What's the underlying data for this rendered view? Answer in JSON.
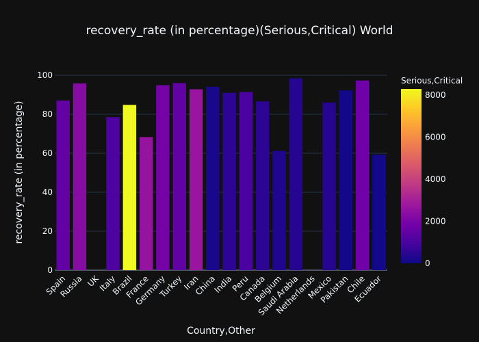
{
  "chart_data": {
    "type": "bar",
    "title": "recovery_rate (in percentage)(Serious,Critical) World",
    "xlabel": "Country,Other",
    "ylabel": "recovery_rate (in percentage)",
    "ylim": [
      0,
      100
    ],
    "yticks": [
      0,
      20,
      40,
      60,
      80,
      100
    ],
    "grid": true,
    "categories": [
      "Spain",
      "Russia",
      "UK",
      "Italy",
      "Brazil",
      "France",
      "Germany",
      "Turkey",
      "Iran",
      "China",
      "India",
      "Peru",
      "Canada",
      "Belgium",
      "Saudi Arabia",
      "Netherlands",
      "Mexico",
      "Pakistan",
      "Chile",
      "Ecuador"
    ],
    "values": [
      87,
      95.8,
      0,
      78.5,
      84.8,
      68.3,
      94.9,
      96,
      92.8,
      94.1,
      91,
      91.4,
      86.6,
      61.2,
      98.4,
      0,
      86,
      92.2,
      97.3,
      59.3
    ],
    "color_values": [
      1500,
      2300,
      0,
      1100,
      8300,
      2600,
      1900,
      1500,
      2700,
      200,
      500,
      1000,
      500,
      300,
      400,
      0,
      400,
      100,
      1800,
      100
    ],
    "colorbar": {
      "title": "Serious,Critical",
      "min": 0,
      "max": 8300,
      "ticks": [
        0,
        2000,
        4000,
        6000,
        8000
      ],
      "colorscale": [
        "#0d0887",
        "#46039f",
        "#7201a8",
        "#9c179e",
        "#bd3786",
        "#d8576b",
        "#ed7953",
        "#fb9f3a",
        "#fdca26",
        "#f0f921"
      ],
      "placement": "right"
    }
  }
}
